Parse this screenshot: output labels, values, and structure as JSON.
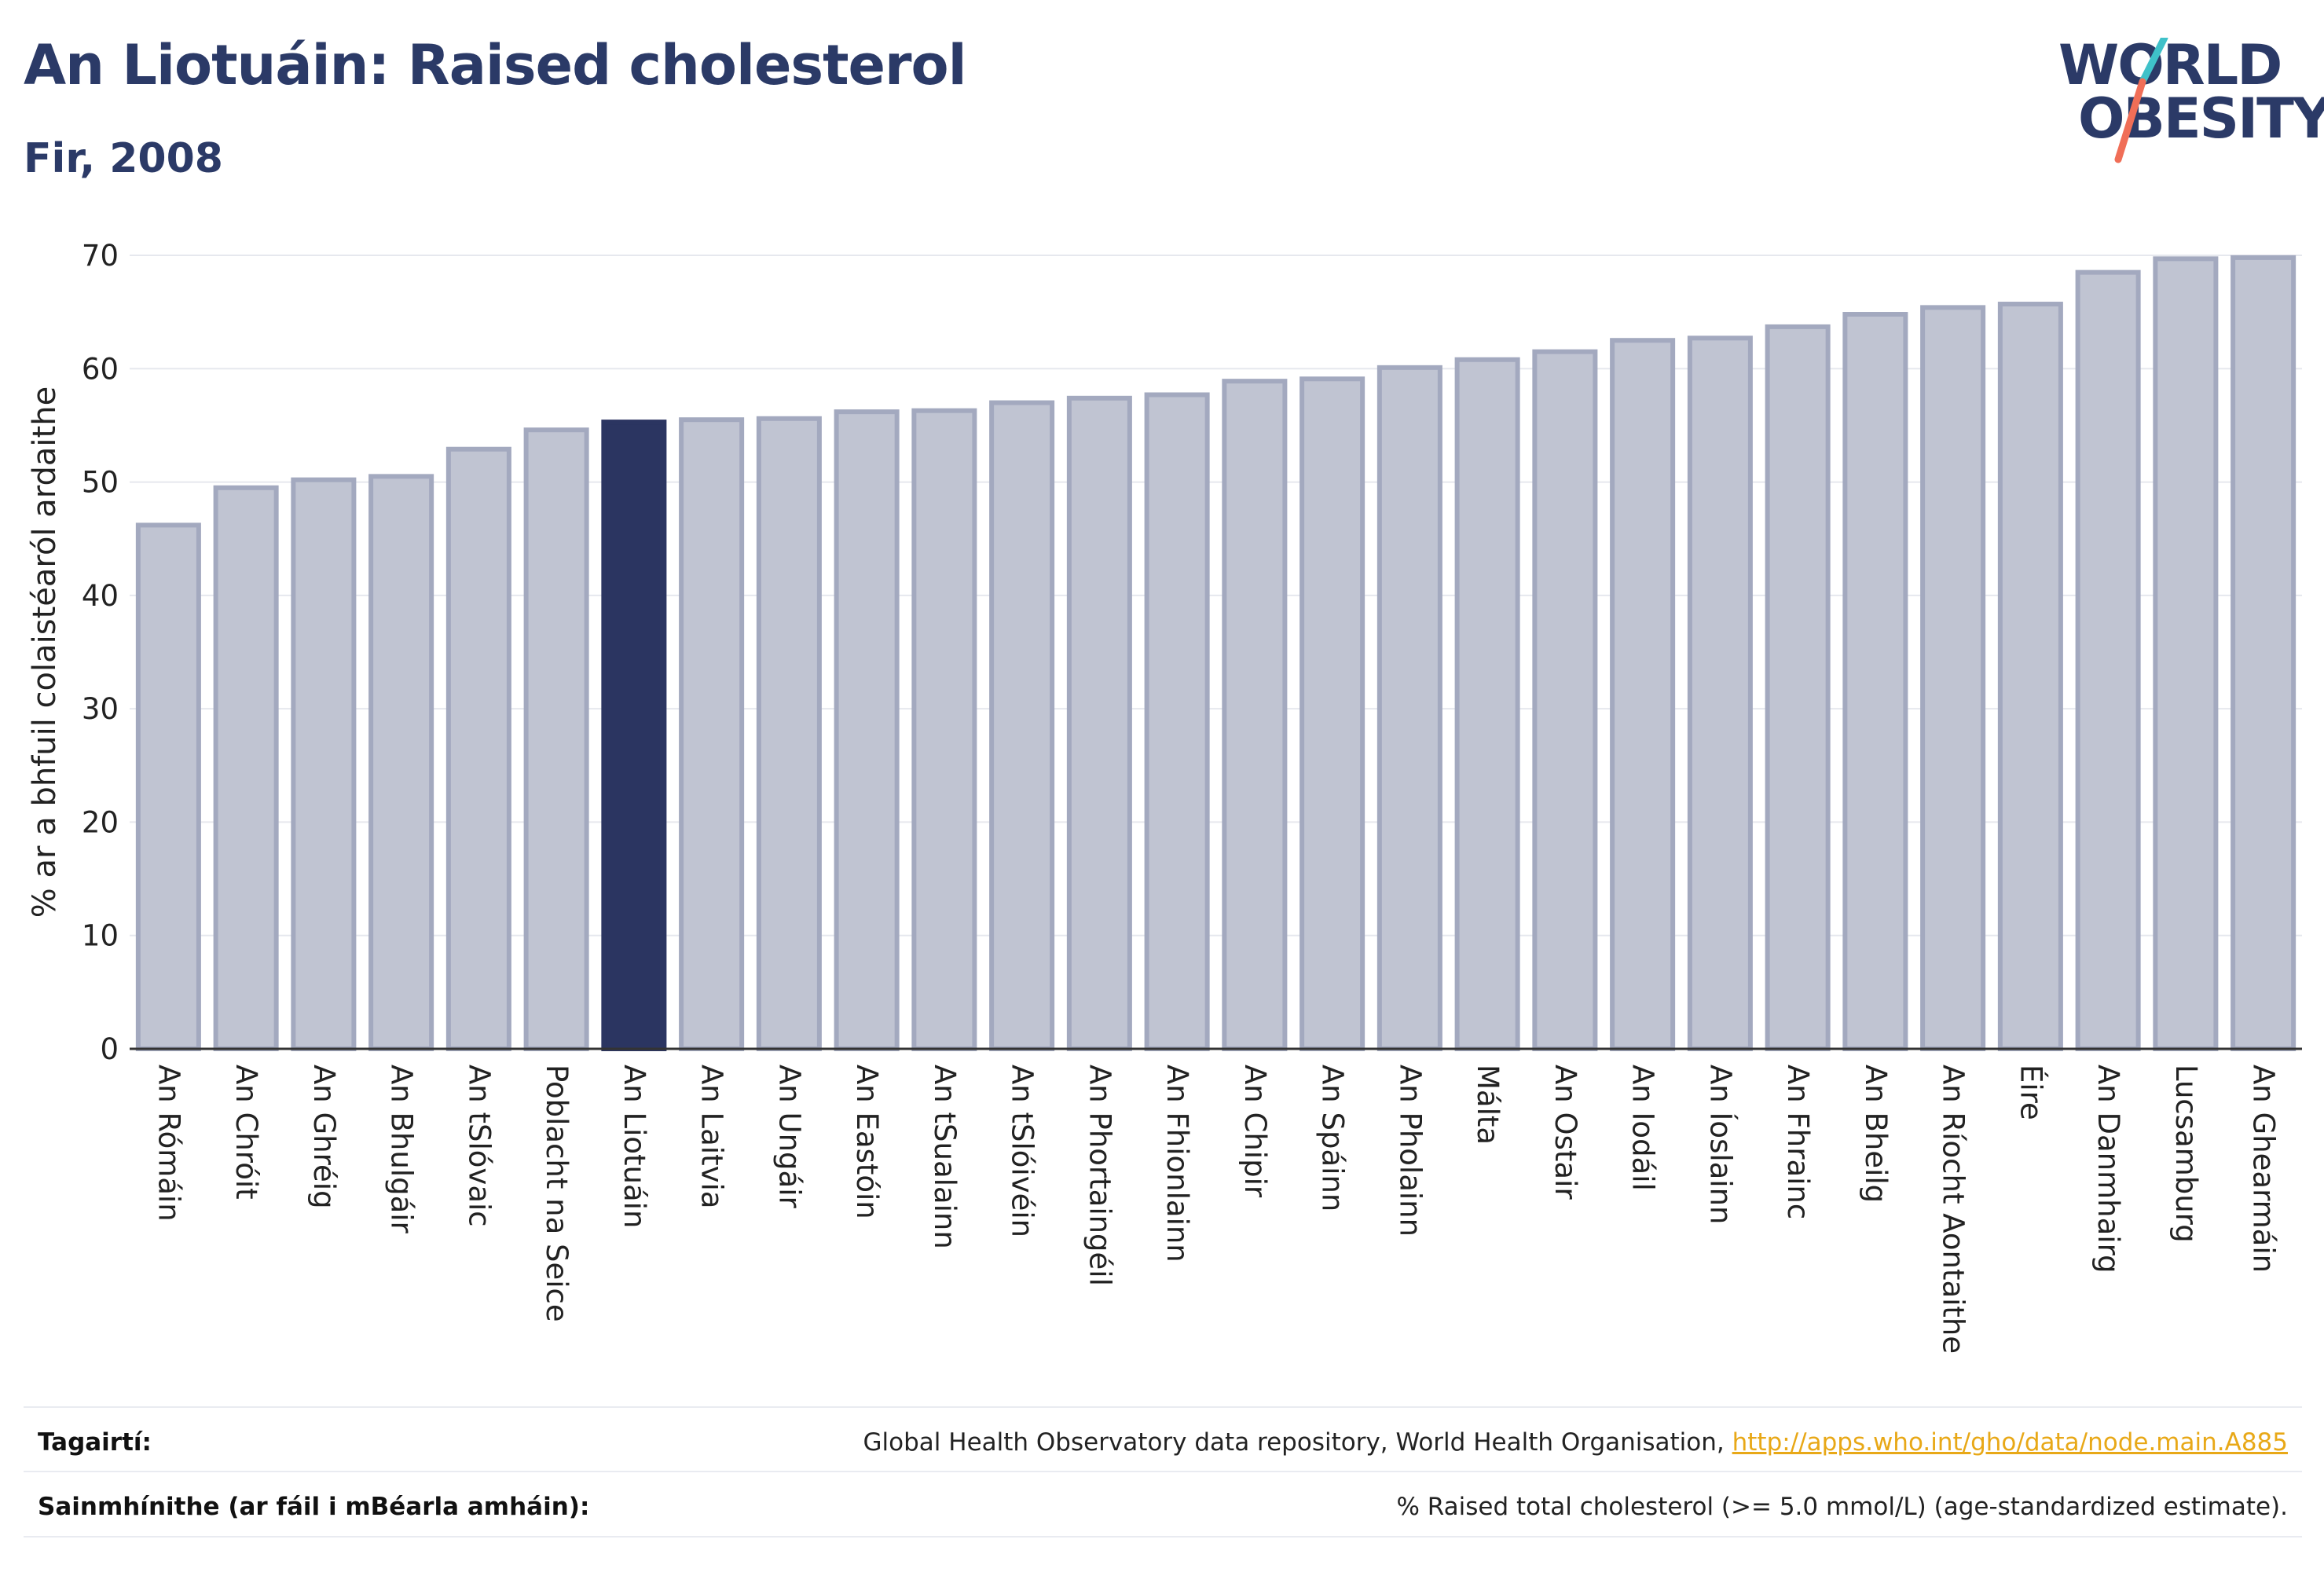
{
  "header": {
    "title": "An Liotuáin: Raised cholesterol",
    "subtitle": "Fir, 2008"
  },
  "logo": {
    "line1": "WORLD",
    "line2": "OBESITY",
    "slash_colors": [
      "#3fc1c9",
      "#f06e57"
    ]
  },
  "colors": {
    "highlight": "#2b3561",
    "bar_fill": "#c0c4d2",
    "bar_stroke": "#a3a9bf",
    "grid": "#e6e8ee",
    "axis": "#333333",
    "link": "#e8a817"
  },
  "chart_data": {
    "type": "bar",
    "title": "An Liotuáin: Raised cholesterol",
    "subtitle": "Fir, 2008",
    "ylabel": "% ar a bhfuil colaistéaról ardaithe",
    "ylim": [
      0,
      70
    ],
    "yticks": [
      0,
      10,
      20,
      30,
      40,
      50,
      60,
      70
    ],
    "grid": true,
    "highlight": "An Liotuáin",
    "categories": [
      "An Rómáin",
      "An Chróit",
      "An Ghréig",
      "An Bhulgáir",
      "An tSlóvaic",
      "Poblacht na Seice",
      "An Liotuáin",
      "An Laitvia",
      "An Ungáir",
      "An Eastóin",
      "An tSualainn",
      "An tSlóivéin",
      "An Phortaingéil",
      "An Fhionlainn",
      "An Chipir",
      "An Spáinn",
      "An Pholainn",
      "Málta",
      "An Ostair",
      "An Iodáil",
      "An Íoslainn",
      "An Fhrainc",
      "An Bheilg",
      "An Ríocht Aontaithe",
      "Éire",
      "An Danmhairg",
      "Lucsamburg",
      "An Ghearmáin"
    ],
    "values": [
      46.2,
      49.5,
      50.2,
      50.5,
      52.9,
      54.6,
      55.3,
      55.5,
      55.6,
      56.2,
      56.3,
      57.0,
      57.4,
      57.7,
      58.9,
      59.1,
      60.1,
      60.8,
      61.5,
      62.5,
      62.7,
      63.7,
      64.8,
      65.4,
      65.7,
      68.5,
      69.7,
      69.8
    ]
  },
  "footer": {
    "references_label": "Tagairtí:",
    "references_text": "Global Health Observatory data repository, World Health Organisation, ",
    "references_link": "http://apps.who.int/gho/data/node.main.A885",
    "definitions_label": "Sainmhínithe (ar fáil i mBéarla amháin):",
    "definitions_text": "% Raised total cholesterol (>= 5.0 mmol/L) (age-standardized estimate)."
  }
}
